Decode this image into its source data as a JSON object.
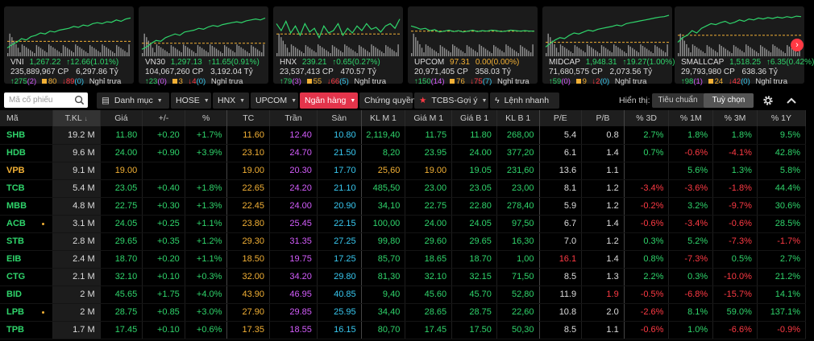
{
  "indices": [
    {
      "name": "VNI",
      "value": "1,267.22",
      "change": "↑12.66(1.01%)",
      "volume": "235,889,967",
      "vol_unit": "CP",
      "turnover": "6,297.86",
      "turn_unit": "Tỷ",
      "up": "↑275",
      "up_ceiling": "(2)",
      "flat": "80",
      "down": "↓89",
      "down_floor": "(0)",
      "status": "Nghỉ trưa",
      "tone": "g",
      "line": [
        0.82,
        0.75,
        0.7,
        0.62,
        0.65,
        0.58,
        0.55,
        0.5,
        0.52,
        0.46,
        0.48,
        0.44,
        0.42,
        0.4,
        0.36,
        0.38,
        0.33,
        0.35,
        0.3,
        0.28,
        0.3,
        0.26,
        0.27,
        0.22,
        0.25,
        0.2,
        0.18
      ],
      "ref": 0.68
    },
    {
      "name": "VN30",
      "value": "1,297.13",
      "change": "↑11.65(0.91%)",
      "volume": "104,067,260",
      "vol_unit": "CP",
      "turnover": "3,192.04",
      "turn_unit": "Tỷ",
      "up": "↑23",
      "up_ceiling": "(0)",
      "flat": "3",
      "down": "↓4",
      "down_floor": "(0)",
      "status": "Nghỉ trưa",
      "tone": "g",
      "line": [
        0.85,
        0.8,
        0.72,
        0.66,
        0.68,
        0.6,
        0.56,
        0.52,
        0.55,
        0.48,
        0.46,
        0.44,
        0.4,
        0.42,
        0.37,
        0.34,
        0.36,
        0.32,
        0.3,
        0.28,
        0.26,
        0.28,
        0.24,
        0.22,
        0.2,
        0.22,
        0.18
      ],
      "ref": 0.72
    },
    {
      "name": "HNX",
      "value": "239.21",
      "change": "↑0.65(0.27%)",
      "volume": "23,537,413",
      "vol_unit": "CP",
      "turnover": "470.57",
      "turn_unit": "Tỷ",
      "up": "↑79",
      "up_ceiling": "(3)",
      "flat": "55",
      "down": "↓66",
      "down_floor": "(5)",
      "status": "Nghỉ trưa",
      "tone": "g",
      "line": [
        0.3,
        0.45,
        0.25,
        0.5,
        0.35,
        0.55,
        0.3,
        0.48,
        0.4,
        0.6,
        0.35,
        0.5,
        0.45,
        0.3,
        0.55,
        0.4,
        0.5,
        0.35,
        0.45,
        0.3,
        0.42,
        0.38,
        0.48,
        0.35,
        0.3,
        0.4,
        0.2
      ],
      "ref": 0.52
    },
    {
      "name": "UPCOM",
      "value": "97.31",
      "change": "0.00(0.00%)",
      "volume": "20,971,405",
      "vol_unit": "CP",
      "turnover": "358.03",
      "turn_unit": "Tỷ",
      "up": "↑150",
      "up_ceiling": "(14)",
      "flat": "76",
      "down": "↓75",
      "down_floor": "(7)",
      "status": "Nghỉ trưa",
      "tone": "y",
      "line": [
        0.35,
        0.38,
        0.42,
        0.4,
        0.45,
        0.43,
        0.48,
        0.46,
        0.44,
        0.47,
        0.45,
        0.48,
        0.46,
        0.44,
        0.47,
        0.45,
        0.46,
        0.44,
        0.45,
        0.47,
        0.46,
        0.44,
        0.45,
        0.46,
        0.45,
        0.46,
        0.46
      ],
      "ref": 0.46
    },
    {
      "name": "MIDCAP",
      "value": "1,948.31",
      "change": "↑19.27(1.00%)",
      "volume": "71,680,575",
      "vol_unit": "CP",
      "turnover": "2,073.56",
      "turn_unit": "Tỷ",
      "up": "↑59",
      "up_ceiling": "(0)",
      "flat": "9",
      "down": "↓2",
      "down_floor": "(0)",
      "status": "Nghỉ trưa",
      "tone": "g",
      "line": [
        0.8,
        0.72,
        0.65,
        0.6,
        0.62,
        0.55,
        0.5,
        0.52,
        0.48,
        0.44,
        0.46,
        0.42,
        0.4,
        0.38,
        0.36,
        0.33,
        0.35,
        0.3,
        0.28,
        0.26,
        0.24,
        0.22,
        0.2,
        0.18,
        0.16,
        0.15,
        0.12
      ],
      "ref": 0.7
    },
    {
      "name": "SMALLCAP",
      "value": "1,518.25",
      "change": "↑6.35(0.42%)",
      "volume": "29,793,980",
      "vol_unit": "CP",
      "turnover": "638.36",
      "turn_unit": "Tỷ",
      "up": "↑98",
      "up_ceiling": "(1)",
      "flat": "24",
      "down": "↓42",
      "down_floor": "(0)",
      "status": "Nghỉ trưa",
      "tone": "g",
      "line": [
        0.7,
        0.6,
        0.55,
        0.45,
        0.5,
        0.4,
        0.35,
        0.3,
        0.32,
        0.28,
        0.25,
        0.3,
        0.27,
        0.22,
        0.25,
        0.2,
        0.22,
        0.18,
        0.2,
        0.17,
        0.19,
        0.16,
        0.18,
        0.15,
        0.17,
        0.14,
        0.15
      ],
      "ref": 0.55
    }
  ],
  "toolbar": {
    "search_placeholder": "Mã cổ phiếu",
    "buttons": [
      "Danh mục",
      "HOSE",
      "HNX",
      "UPCOM",
      "Ngân hàng",
      "Chứng quyền",
      "TCBS-Gợi ý",
      "Lệnh nhanh"
    ],
    "view_label": "Hiển thị:",
    "view_standard": "Tiêu chuẩn",
    "view_custom": "Tuỳ chọn"
  },
  "columns": [
    "Mã",
    "T.KL",
    "Giá",
    "+/-",
    "%",
    "TC",
    "Trần",
    "Sàn",
    "KL M 1",
    "Giá M 1",
    "Giá B 1",
    "KL B 1",
    "P/E",
    "P/B",
    "% 3D",
    "% 1M",
    "% 3M",
    "% 1Y"
  ],
  "colors": {
    "up": "#2fd46b",
    "ref": "#f2b035",
    "down": "#ff3a44",
    "ceiling": "#d45dfd",
    "floor": "#38c8f0",
    "white": "#dddddd"
  },
  "rows": [
    {
      "sym": "SHB",
      "c": "g",
      "dot": false,
      "cells": [
        "19.2 M",
        "11.80",
        "+0.20",
        "+1.7%",
        "11.60",
        "12.40",
        "10.80",
        "2,119,40",
        "11.75",
        "11.80",
        "268,00",
        "5.4",
        "0.8",
        "2.7%",
        "1.8%",
        "1.8%",
        "9.5%"
      ],
      "cc": [
        "w",
        "g",
        "g",
        "g",
        "y",
        "m",
        "c",
        "g",
        "g",
        "g",
        "g",
        "w",
        "w",
        "g",
        "g",
        "g",
        "g"
      ]
    },
    {
      "sym": "HDB",
      "c": "g",
      "dot": false,
      "cells": [
        "9.6 M",
        "24.00",
        "+0.90",
        "+3.9%",
        "23.10",
        "24.70",
        "21.50",
        "8,20",
        "23.95",
        "24.00",
        "377,20",
        "6.1",
        "1.4",
        "0.7%",
        "-0.6%",
        "-4.1%",
        "42.8%"
      ],
      "cc": [
        "w",
        "g",
        "g",
        "g",
        "y",
        "m",
        "c",
        "g",
        "g",
        "g",
        "g",
        "w",
        "w",
        "g",
        "r",
        "r",
        "g"
      ]
    },
    {
      "sym": "VPB",
      "c": "y",
      "dot": false,
      "cells": [
        "9.1 M",
        "19.00",
        "",
        "",
        "19.00",
        "20.30",
        "17.70",
        "25,60",
        "19.00",
        "19.05",
        "231,60",
        "13.6",
        "1.1",
        "",
        "5.6%",
        "1.3%",
        "5.8%"
      ],
      "cc": [
        "w",
        "y",
        "y",
        "y",
        "y",
        "m",
        "c",
        "y",
        "y",
        "g",
        "g",
        "w",
        "w",
        "g",
        "g",
        "g",
        "g"
      ]
    },
    {
      "sym": "TCB",
      "c": "g",
      "dot": false,
      "cells": [
        "5.4 M",
        "23.05",
        "+0.40",
        "+1.8%",
        "22.65",
        "24.20",
        "21.10",
        "485,50",
        "23.00",
        "23.05",
        "23,00",
        "8.1",
        "1.2",
        "-3.4%",
        "-3.6%",
        "-1.8%",
        "44.4%"
      ],
      "cc": [
        "w",
        "g",
        "g",
        "g",
        "y",
        "m",
        "c",
        "g",
        "g",
        "g",
        "g",
        "w",
        "w",
        "r",
        "r",
        "r",
        "g"
      ]
    },
    {
      "sym": "MBB",
      "c": "g",
      "dot": false,
      "cells": [
        "4.8 M",
        "22.75",
        "+0.30",
        "+1.3%",
        "22.45",
        "24.00",
        "20.90",
        "34,10",
        "22.75",
        "22.80",
        "278,40",
        "5.9",
        "1.2",
        "-0.2%",
        "3.2%",
        "-9.7%",
        "30.6%"
      ],
      "cc": [
        "w",
        "g",
        "g",
        "g",
        "y",
        "m",
        "c",
        "g",
        "g",
        "g",
        "g",
        "w",
        "w",
        "r",
        "g",
        "r",
        "g"
      ]
    },
    {
      "sym": "ACB",
      "c": "g",
      "dot": true,
      "cells": [
        "3.1 M",
        "24.05",
        "+0.25",
        "+1.1%",
        "23.80",
        "25.45",
        "22.15",
        "100,00",
        "24.00",
        "24.05",
        "97,50",
        "6.7",
        "1.4",
        "-0.6%",
        "-3.4%",
        "-0.6%",
        "28.5%"
      ],
      "cc": [
        "w",
        "g",
        "g",
        "g",
        "y",
        "m",
        "c",
        "g",
        "g",
        "g",
        "g",
        "w",
        "w",
        "r",
        "r",
        "r",
        "g"
      ]
    },
    {
      "sym": "STB",
      "c": "g",
      "dot": false,
      "cells": [
        "2.8 M",
        "29.65",
        "+0.35",
        "+1.2%",
        "29.30",
        "31.35",
        "27.25",
        "99,80",
        "29.60",
        "29.65",
        "16,30",
        "7.0",
        "1.2",
        "0.3%",
        "5.2%",
        "-7.3%",
        "-1.7%"
      ],
      "cc": [
        "w",
        "g",
        "g",
        "g",
        "y",
        "m",
        "c",
        "g",
        "g",
        "g",
        "g",
        "w",
        "w",
        "g",
        "g",
        "r",
        "r"
      ]
    },
    {
      "sym": "EIB",
      "c": "g",
      "dot": false,
      "cells": [
        "2.4 M",
        "18.70",
        "+0.20",
        "+1.1%",
        "18.50",
        "19.75",
        "17.25",
        "85,70",
        "18.65",
        "18.70",
        "1,00",
        "16.1",
        "1.4",
        "0.8%",
        "-7.3%",
        "0.5%",
        "2.7%"
      ],
      "cc": [
        "w",
        "g",
        "g",
        "g",
        "y",
        "m",
        "c",
        "g",
        "g",
        "g",
        "g",
        "r",
        "w",
        "g",
        "r",
        "g",
        "g"
      ]
    },
    {
      "sym": "CTG",
      "c": "g",
      "dot": false,
      "cells": [
        "2.1 M",
        "32.10",
        "+0.10",
        "+0.3%",
        "32.00",
        "34.20",
        "29.80",
        "81,30",
        "32.10",
        "32.15",
        "71,50",
        "8.5",
        "1.3",
        "2.2%",
        "0.3%",
        "-10.0%",
        "21.2%"
      ],
      "cc": [
        "w",
        "g",
        "g",
        "g",
        "y",
        "m",
        "c",
        "g",
        "g",
        "g",
        "g",
        "w",
        "w",
        "g",
        "g",
        "r",
        "g"
      ]
    },
    {
      "sym": "BID",
      "c": "g",
      "dot": false,
      "cells": [
        "2 M",
        "45.65",
        "+1.75",
        "+4.0%",
        "43.90",
        "46.95",
        "40.85",
        "9,40",
        "45.60",
        "45.70",
        "52,80",
        "11.9",
        "1.9",
        "-0.5%",
        "-6.8%",
        "-15.7%",
        "14.1%"
      ],
      "cc": [
        "w",
        "g",
        "g",
        "g",
        "y",
        "m",
        "c",
        "g",
        "g",
        "g",
        "g",
        "w",
        "r",
        "r",
        "r",
        "r",
        "g"
      ]
    },
    {
      "sym": "LPB",
      "c": "g",
      "dot": true,
      "cells": [
        "2 M",
        "28.75",
        "+0.85",
        "+3.0%",
        "27.90",
        "29.85",
        "25.95",
        "34,40",
        "28.65",
        "28.75",
        "22,60",
        "10.8",
        "2.0",
        "-2.6%",
        "8.1%",
        "59.0%",
        "137.1%"
      ],
      "cc": [
        "w",
        "g",
        "g",
        "g",
        "y",
        "m",
        "c",
        "g",
        "g",
        "g",
        "g",
        "w",
        "w",
        "r",
        "g",
        "g",
        "g"
      ]
    },
    {
      "sym": "TPB",
      "c": "g",
      "dot": false,
      "cells": [
        "1.7 M",
        "17.45",
        "+0.10",
        "+0.6%",
        "17.35",
        "18.55",
        "16.15",
        "80,70",
        "17.45",
        "17.50",
        "50,30",
        "8.5",
        "1.1",
        "-0.6%",
        "1.0%",
        "-6.6%",
        "-0.9%"
      ],
      "cc": [
        "w",
        "g",
        "g",
        "g",
        "y",
        "m",
        "c",
        "g",
        "g",
        "g",
        "g",
        "w",
        "w",
        "r",
        "g",
        "r",
        "r"
      ]
    }
  ]
}
